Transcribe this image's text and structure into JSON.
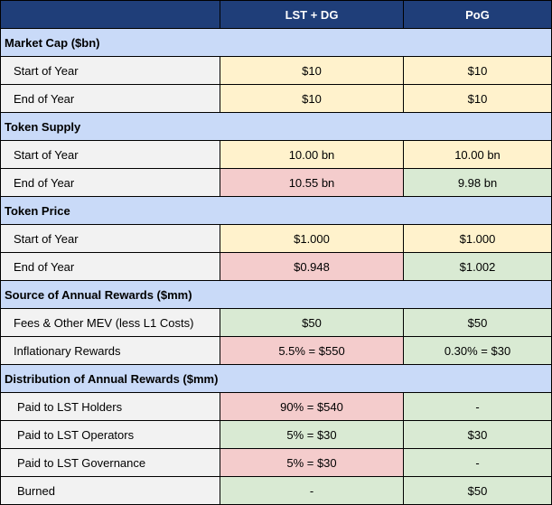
{
  "header": {
    "col1": "LST + DG",
    "col2": "PoG"
  },
  "sections": [
    {
      "title": "Market Cap ($bn)",
      "rows": [
        {
          "label": "Start of Year",
          "a": "$10",
          "b": "$10",
          "a_color": "#fff2cc",
          "b_color": "#fff2cc"
        },
        {
          "label": "End of Year",
          "a": "$10",
          "b": "$10",
          "a_color": "#fff2cc",
          "b_color": "#fff2cc"
        }
      ]
    },
    {
      "title": "Token Supply",
      "rows": [
        {
          "label": "Start of Year",
          "a": "10.00 bn",
          "b": "10.00 bn",
          "a_color": "#fff2cc",
          "b_color": "#fff2cc"
        },
        {
          "label": "End of Year",
          "a": "10.55 bn",
          "b": "9.98 bn",
          "a_color": "#f4cccc",
          "b_color": "#d9ead3"
        }
      ]
    },
    {
      "title": "Token Price",
      "rows": [
        {
          "label": "Start of Year",
          "a": "$1.000",
          "b": "$1.000",
          "a_color": "#fff2cc",
          "b_color": "#fff2cc"
        },
        {
          "label": "End of Year",
          "a": "$0.948",
          "b": "$1.002",
          "a_color": "#f4cccc",
          "b_color": "#d9ead3"
        }
      ]
    },
    {
      "title": "Source of Annual Rewards ($mm)",
      "rows": [
        {
          "label": "Fees & Other MEV (less L1 Costs)",
          "a": "$50",
          "b": "$50",
          "a_color": "#d9ead3",
          "b_color": "#d9ead3"
        },
        {
          "label": "Inflationary Rewards",
          "a": "5.5% = $550",
          "b": "0.30% = $30",
          "a_color": "#f4cccc",
          "b_color": "#d9ead3"
        }
      ]
    },
    {
      "title": "Distribution of Annual Rewards ($mm)",
      "rows": [
        {
          "label": "Paid to LST Holders",
          "a": "90% = $540",
          "b": "-",
          "a_color": "#f4cccc",
          "b_color": "#d9ead3"
        },
        {
          "label": "Paid to LST Operators",
          "a": "5% = $30",
          "b": "$30",
          "a_color": "#d9ead3",
          "b_color": "#d9ead3"
        },
        {
          "label": "Paid to LST Governance",
          "a": "5% = $30",
          "b": "-",
          "a_color": "#f4cccc",
          "b_color": "#d9ead3"
        },
        {
          "label": "Burned",
          "a": "-",
          "b": "$50",
          "a_color": "#d9ead3",
          "b_color": "#d9ead3"
        }
      ]
    }
  ]
}
